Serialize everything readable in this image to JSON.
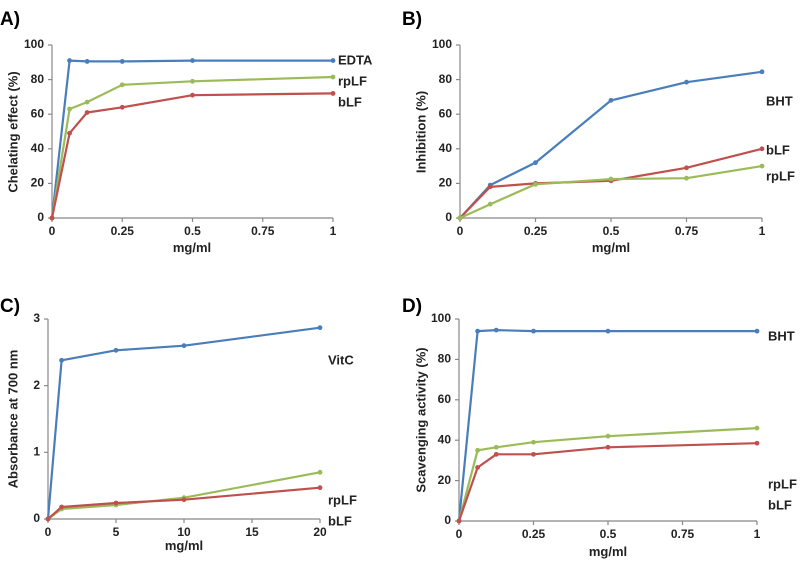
{
  "chart_data": [
    {
      "panel": "A)",
      "type": "line",
      "xlabel": "mg/ml",
      "ylabel": "Chelating effect  (%)",
      "xlim": [
        0,
        1
      ],
      "ylim": [
        0,
        100
      ],
      "xticks": [
        0,
        0.25,
        0.5,
        0.75,
        1
      ],
      "xtick_labels": [
        "0",
        "0.25",
        "0.5",
        "0.75",
        "1"
      ],
      "yticks": [
        0,
        20,
        40,
        60,
        80,
        100
      ],
      "ytick_labels": [
        "0",
        "20",
        "40",
        "60",
        "80",
        "100"
      ],
      "series": [
        {
          "name": "EDTA",
          "color": "#4a7ebb",
          "x": [
            0,
            0.0625,
            0.125,
            0.25,
            0.5,
            1
          ],
          "y": [
            0,
            91,
            90.5,
            90.5,
            91,
            91
          ]
        },
        {
          "name": "rpLF",
          "color": "#9bbb59",
          "x": [
            0,
            0.0625,
            0.125,
            0.25,
            0.5,
            1
          ],
          "y": [
            0,
            63,
            67,
            77,
            79,
            81.5
          ]
        },
        {
          "name": "bLF",
          "color": "#c0504d",
          "x": [
            0,
            0.0625,
            0.125,
            0.25,
            0.5,
            1
          ],
          "y": [
            0,
            49,
            61,
            64,
            71,
            72
          ]
        }
      ]
    },
    {
      "panel": "B)",
      "type": "line",
      "xlabel": "mg/ml",
      "ylabel": "Inhibition (%)",
      "xlim": [
        0,
        1
      ],
      "ylim": [
        0,
        100
      ],
      "xticks": [
        0,
        0.25,
        0.5,
        0.75,
        1
      ],
      "xtick_labels": [
        "0",
        "0.25",
        "0.5",
        "0.75",
        "1"
      ],
      "yticks": [
        0,
        20,
        40,
        60,
        80,
        100
      ],
      "ytick_labels": [
        "0",
        "20",
        "40",
        "60",
        "80",
        "100"
      ],
      "series": [
        {
          "name": "BHT",
          "color": "#4a7ebb",
          "x": [
            0,
            0.1,
            0.25,
            0.5,
            0.75,
            1
          ],
          "y": [
            0,
            19,
            32,
            68,
            78.5,
            84.5
          ]
        },
        {
          "name": "bLF",
          "color": "#c0504d",
          "x": [
            0,
            0.1,
            0.25,
            0.5,
            0.75,
            1
          ],
          "y": [
            0,
            18,
            20,
            21.5,
            29,
            40
          ]
        },
        {
          "name": "rpLF",
          "color": "#9bbb59",
          "x": [
            0,
            0.1,
            0.25,
            0.5,
            0.75,
            1
          ],
          "y": [
            0,
            8,
            19.5,
            22.5,
            23,
            30
          ]
        }
      ]
    },
    {
      "panel": "C)",
      "type": "line",
      "xlabel": "mg/ml",
      "ylabel": "Absorbance at 700 nm",
      "xlim": [
        0,
        20
      ],
      "ylim": [
        0,
        3
      ],
      "xticks": [
        0,
        5,
        10,
        15,
        20
      ],
      "xtick_labels": [
        "0",
        "5",
        "10",
        "15",
        "20"
      ],
      "yticks": [
        0,
        1,
        2,
        3
      ],
      "ytick_labels": [
        "0",
        "1",
        "2",
        "3"
      ],
      "series": [
        {
          "name": "VitC",
          "color": "#4a7ebb",
          "x": [
            0,
            1,
            5,
            10,
            20
          ],
          "y": [
            0,
            2.38,
            2.53,
            2.6,
            2.87
          ]
        },
        {
          "name": "rpLF",
          "color": "#9bbb59",
          "x": [
            0,
            1,
            5,
            10,
            20
          ],
          "y": [
            0,
            0.15,
            0.21,
            0.32,
            0.7
          ]
        },
        {
          "name": "bLF",
          "color": "#c0504d",
          "x": [
            0,
            1,
            5,
            10,
            20
          ],
          "y": [
            0,
            0.18,
            0.24,
            0.29,
            0.47
          ]
        }
      ]
    },
    {
      "panel": "D)",
      "type": "line",
      "xlabel": "mg/ml",
      "ylabel": "Scavenging activity (%)",
      "xlim": [
        0,
        1
      ],
      "ylim": [
        0,
        100
      ],
      "xticks": [
        0,
        0.25,
        0.5,
        0.75,
        1
      ],
      "xtick_labels": [
        "0",
        "0.25",
        "0.5",
        "0.75",
        "1"
      ],
      "yticks": [
        0,
        20,
        40,
        60,
        80,
        100
      ],
      "ytick_labels": [
        "0",
        "20",
        "40",
        "60",
        "80",
        "100"
      ],
      "series": [
        {
          "name": "BHT",
          "color": "#4a7ebb",
          "x": [
            0,
            0.0625,
            0.125,
            0.25,
            0.5,
            1
          ],
          "y": [
            0,
            94,
            94.5,
            94,
            94,
            94
          ]
        },
        {
          "name": "rpLF",
          "color": "#9bbb59",
          "x": [
            0,
            0.0625,
            0.125,
            0.25,
            0.5,
            1
          ],
          "y": [
            0,
            35,
            36.5,
            39,
            42,
            46
          ]
        },
        {
          "name": "bLF",
          "color": "#c0504d",
          "x": [
            0,
            0.0625,
            0.125,
            0.25,
            0.5,
            1
          ],
          "y": [
            0,
            26.5,
            33,
            33,
            36.5,
            38.5
          ]
        }
      ]
    }
  ]
}
